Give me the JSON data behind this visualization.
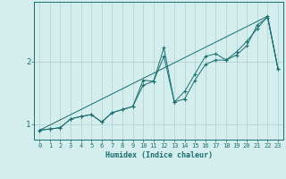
{
  "xlabel": "Humidex (Indice chaleur)",
  "ylabel": "",
  "background_color": "#d4eded",
  "line_color": "#1a6e6e",
  "grid_color": "#aecece",
  "xlim": [
    -0.5,
    23.5
  ],
  "ylim": [
    0.75,
    2.95
  ],
  "yticks": [
    1,
    2
  ],
  "xticks": [
    0,
    1,
    2,
    3,
    4,
    5,
    6,
    7,
    8,
    9,
    10,
    11,
    12,
    13,
    14,
    15,
    16,
    17,
    18,
    19,
    20,
    21,
    22,
    23
  ],
  "line1_x": [
    0,
    1,
    2,
    3,
    4,
    5,
    6,
    7,
    8,
    9,
    10,
    11,
    12,
    13,
    14,
    15,
    16,
    17,
    18,
    19,
    20,
    21,
    22,
    23
  ],
  "line1_y": [
    0.9,
    0.92,
    0.94,
    1.08,
    1.12,
    1.15,
    1.03,
    1.18,
    1.23,
    1.28,
    1.62,
    1.68,
    2.22,
    1.35,
    1.4,
    1.7,
    1.95,
    2.02,
    2.02,
    2.1,
    2.25,
    2.58,
    2.7,
    1.88
  ],
  "line2_x": [
    0,
    1,
    2,
    3,
    4,
    5,
    6,
    7,
    8,
    9,
    10,
    11,
    12,
    13,
    14,
    15,
    16,
    17,
    18,
    19,
    20,
    21,
    22,
    23
  ],
  "line2_y": [
    0.9,
    0.92,
    0.94,
    1.08,
    1.12,
    1.15,
    1.03,
    1.18,
    1.23,
    1.28,
    1.7,
    1.68,
    2.08,
    1.35,
    1.52,
    1.8,
    2.08,
    2.12,
    2.02,
    2.15,
    2.32,
    2.52,
    2.72,
    1.88
  ],
  "line3_x": [
    0,
    22,
    23
  ],
  "line3_y": [
    0.9,
    2.72,
    1.88
  ]
}
